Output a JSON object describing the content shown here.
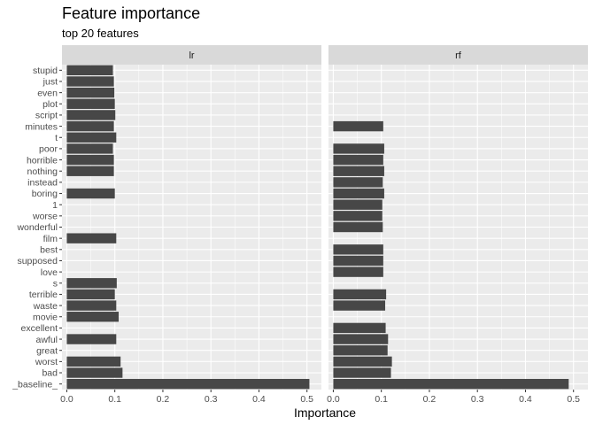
{
  "chart_data": {
    "type": "bar",
    "orientation": "horizontal",
    "title": "Feature importance",
    "subtitle": "top 20 features",
    "xlabel": "Importance",
    "ylabel": "",
    "xlim": [
      -0.01,
      0.53
    ],
    "xticks": [
      "0.0",
      "0.1",
      "0.2",
      "0.3",
      "0.4",
      "0.5"
    ],
    "grid": true,
    "legend": "none",
    "bar_color": "#474747",
    "panel_bg": "#ebebeb",
    "strip_bg": "#d9d9d9",
    "categories": [
      "stupid",
      "just",
      "even",
      "plot",
      "script",
      "minutes",
      "t",
      "poor",
      "horrible",
      "nothing",
      "instead",
      "boring",
      "1",
      "worse",
      "wonderful",
      "film",
      "best",
      "supposed",
      "love",
      "s",
      "terrible",
      "waste",
      "movie",
      "excellent",
      "awful",
      "great",
      "worst",
      "bad",
      "_baseline_"
    ],
    "facets": [
      {
        "name": "lr",
        "values": [
          0.096,
          0.098,
          0.099,
          0.1,
          0.101,
          0.098,
          0.103,
          0.096,
          0.098,
          0.098,
          null,
          0.1,
          null,
          null,
          null,
          0.103,
          null,
          null,
          null,
          0.104,
          0.1,
          0.103,
          0.108,
          null,
          0.103,
          null,
          0.112,
          0.116,
          0.505
        ]
      },
      {
        "name": "rf",
        "values": [
          null,
          null,
          null,
          null,
          null,
          0.104,
          null,
          0.106,
          0.104,
          0.106,
          0.103,
          0.106,
          0.102,
          0.102,
          0.103,
          null,
          0.104,
          0.104,
          0.104,
          null,
          0.11,
          0.108,
          null,
          0.109,
          0.114,
          0.113,
          0.122,
          0.12,
          0.49
        ]
      }
    ]
  }
}
